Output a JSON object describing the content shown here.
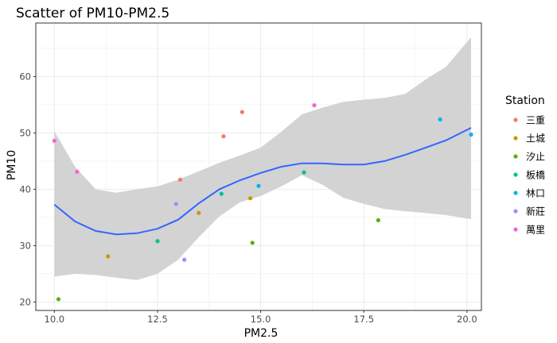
{
  "chart_data": {
    "type": "scatter",
    "title": "Scatter of PM10-PM2.5",
    "xlabel": "PM2.5",
    "ylabel": "PM10",
    "xlim": [
      9.55,
      20.35
    ],
    "ylim": [
      18.5,
      69.5
    ],
    "x_ticks": [
      10.0,
      12.5,
      15.0,
      17.5,
      20.0
    ],
    "x_tick_labels": [
      "10.0",
      "12.5",
      "15.0",
      "17.5",
      "20.0"
    ],
    "y_ticks": [
      20,
      30,
      40,
      50,
      60
    ],
    "y_tick_labels": [
      "20",
      "30",
      "40",
      "50",
      "60"
    ],
    "grid": true,
    "legend": {
      "title": "Station",
      "position": "right",
      "entries": [
        {
          "label": "三重",
          "color": "#F8766D"
        },
        {
          "label": "土城",
          "color": "#C49A00"
        },
        {
          "label": "汐止",
          "color": "#53B400"
        },
        {
          "label": "板橋",
          "color": "#00C094"
        },
        {
          "label": "林口",
          "color": "#00B6EB"
        },
        {
          "label": "新莊",
          "color": "#A58AFF"
        },
        {
          "label": "萬里",
          "color": "#FB61D7"
        }
      ]
    },
    "series": [
      {
        "name": "三重",
        "color": "#F8766D",
        "points": [
          [
            13.05,
            41.7
          ],
          [
            14.1,
            49.4
          ],
          [
            14.55,
            53.7
          ]
        ]
      },
      {
        "name": "土城",
        "color": "#C49A00",
        "points": [
          [
            11.3,
            28.1
          ],
          [
            13.5,
            35.8
          ],
          [
            14.75,
            38.4
          ]
        ]
      },
      {
        "name": "汐止",
        "color": "#53B400",
        "points": [
          [
            10.1,
            20.5
          ],
          [
            14.8,
            30.5
          ],
          [
            17.85,
            34.5
          ]
        ]
      },
      {
        "name": "板橋",
        "color": "#00C094",
        "points": [
          [
            12.5,
            30.8
          ],
          [
            14.05,
            39.2
          ],
          [
            16.05,
            43.0
          ]
        ]
      },
      {
        "name": "林口",
        "color": "#00B6EB",
        "points": [
          [
            14.95,
            40.6
          ],
          [
            19.35,
            52.4
          ],
          [
            20.1,
            49.7
          ]
        ]
      },
      {
        "name": "新莊",
        "color": "#A58AFF",
        "points": [
          [
            12.95,
            37.4
          ],
          [
            13.15,
            27.5
          ]
        ]
      },
      {
        "name": "萬里",
        "color": "#FB61D7",
        "points": [
          [
            10.0,
            48.6
          ],
          [
            10.55,
            43.1
          ],
          [
            16.3,
            54.9
          ]
        ]
      }
    ],
    "smooth": {
      "color": "#3366FF",
      "band_color": "#D3D3D3",
      "x": [
        10.0,
        10.5,
        11.0,
        11.5,
        12.0,
        12.5,
        13.0,
        13.5,
        14.0,
        14.5,
        15.0,
        15.5,
        16.0,
        16.5,
        17.0,
        17.5,
        18.0,
        18.5,
        19.0,
        19.5,
        20.1
      ],
      "y": [
        37.3,
        34.3,
        32.6,
        32.0,
        32.2,
        33.0,
        34.6,
        37.5,
        40.0,
        41.6,
        42.9,
        44.0,
        44.6,
        44.6,
        44.4,
        44.4,
        45.0,
        46.1,
        47.4,
        48.7,
        50.9
      ],
      "ymin": [
        24.5,
        25.0,
        24.8,
        24.3,
        23.9,
        25.0,
        27.5,
        31.5,
        35.2,
        37.7,
        38.8,
        40.5,
        42.5,
        40.8,
        38.5,
        37.4,
        36.5,
        36.1,
        35.8,
        35.4,
        34.7
      ],
      "ymax": [
        50.3,
        44.0,
        40.0,
        39.4,
        40.0,
        40.5,
        41.7,
        43.2,
        44.7,
        46.0,
        47.4,
        50.2,
        53.3,
        54.5,
        55.5,
        55.9,
        56.2,
        56.9,
        59.5,
        61.8,
        67.0
      ]
    }
  }
}
